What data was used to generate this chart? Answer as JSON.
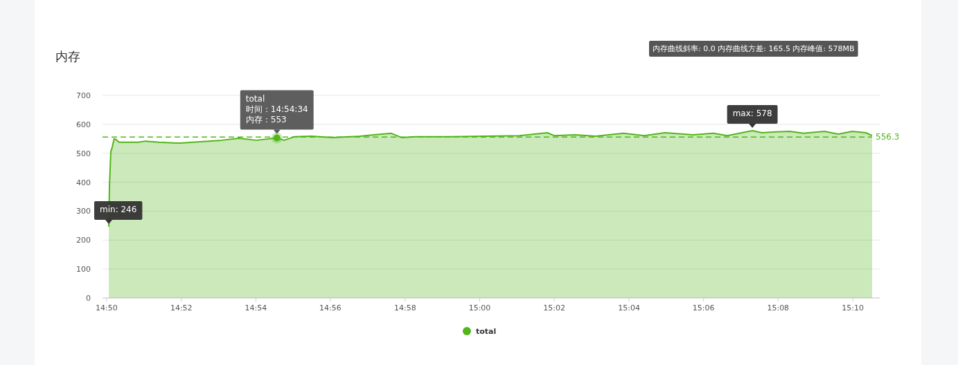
{
  "chart_data": {
    "type": "area",
    "title": "内存",
    "annotations": [
      "内存曲线斜率: 0.0  内存曲线方差: 165.5  内存峰值: 578MB",
      {
        "text": "total\n时间：14:54:34\n内存：553",
        "x": 14.9094,
        "y": 553
      },
      {
        "text": "min: 246",
        "x": 14.8343,
        "y": 246
      },
      {
        "text": "max: 578",
        "x": 15.1218,
        "y": 578
      }
    ],
    "series": [
      {
        "name": "total",
        "color": "#52b51a",
        "x": [
          14.8343,
          14.8346,
          14.8352,
          14.8358,
          14.8367,
          14.8376,
          14.8389,
          14.8475,
          14.8506,
          14.8568,
          14.8661,
          14.8754,
          14.8847,
          14.8924,
          14.9002,
          14.9094,
          14.9126,
          14.9172,
          14.9249,
          14.9342,
          14.9466,
          14.9528,
          14.9605,
          14.9652,
          14.9713,
          14.9868,
          15.0023,
          15.0178,
          15.0302,
          15.0333,
          15.0426,
          15.0518,
          15.0642,
          15.0735,
          15.0828,
          15.0952,
          15.1044,
          15.1106,
          15.1218,
          15.1261,
          15.1323,
          15.1385,
          15.1447,
          15.154,
          15.1602,
          15.1664,
          15.1725,
          15.1753
        ],
        "values": [
          246,
          385,
          505,
          520,
          550,
          547,
          538,
          538,
          542,
          538,
          535,
          540,
          545,
          552,
          545,
          553,
          545,
          557,
          559,
          554,
          559,
          564,
          569,
          554,
          557,
          557,
          559,
          561,
          571,
          561,
          564,
          559,
          569,
          561,
          571,
          564,
          569,
          561,
          578,
          571,
          574,
          576,
          569,
          576,
          566,
          576,
          571,
          561
        ]
      }
    ],
    "xlim": [
      14.8315,
      15.1787
    ],
    "xticks": [
      {
        "value": 14.8333,
        "label": "14:50"
      },
      {
        "value": 14.8667,
        "label": "14:52"
      },
      {
        "value": 14.9,
        "label": "14:54"
      },
      {
        "value": 14.9333,
        "label": "14:56"
      },
      {
        "value": 14.9667,
        "label": "14:58"
      },
      {
        "value": 15,
        "label": "15:00"
      },
      {
        "value": 15.0333,
        "label": "15:02"
      },
      {
        "value": 15.0667,
        "label": "15:04"
      },
      {
        "value": 15.1,
        "label": "15:06"
      },
      {
        "value": 15.1333,
        "label": "15:08"
      },
      {
        "value": 15.1667,
        "label": "15:10"
      }
    ],
    "ylim": [
      0,
      700
    ],
    "yticks": [
      0,
      100,
      200,
      300,
      400,
      500,
      600,
      700
    ],
    "ref_lines": [
      {
        "axis": "y",
        "value": 556.3,
        "label": "556.3",
        "color": "#52b51a",
        "line_style": "dashed"
      }
    ],
    "grid": "y",
    "legend": "bottom"
  }
}
